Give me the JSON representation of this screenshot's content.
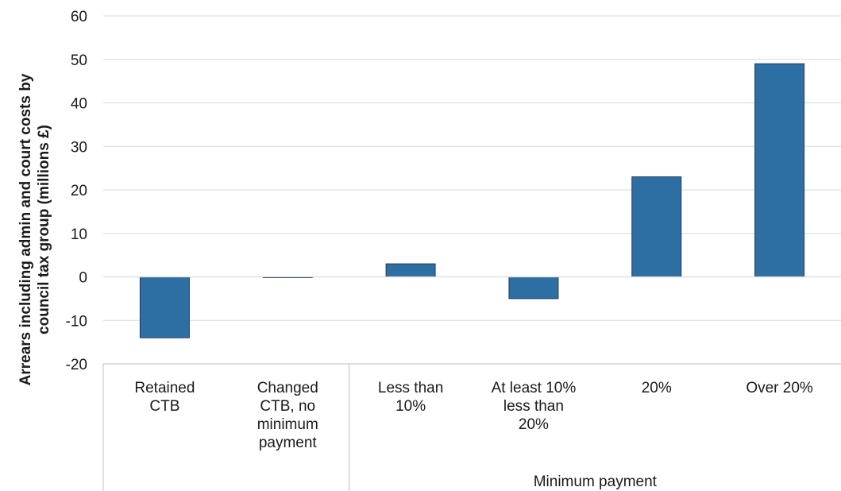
{
  "chart_data": {
    "type": "bar",
    "categories": [
      [
        "Retained",
        "CTB"
      ],
      [
        "Changed",
        "CTB, no",
        "minimum",
        "payment"
      ],
      [
        "Less than",
        "10%"
      ],
      [
        "At least 10%",
        "less than",
        "20%"
      ],
      [
        "20%"
      ],
      [
        "Over 20%"
      ]
    ],
    "values": [
      -14,
      0,
      3,
      -5,
      23,
      49
    ],
    "ylabel": [
      "Arrears including admin  and court costs by",
      "council tax group (millions £)"
    ],
    "xlabel": "",
    "group_label": "Minimum payment",
    "group_start_index": 2,
    "ylim": [
      -20,
      60
    ],
    "yticks": [
      -20,
      -10,
      0,
      10,
      20,
      30,
      40,
      50,
      60
    ],
    "grid": true,
    "colors": {
      "bar": "#2e6fa3",
      "bar_edge": "#1d3f5e",
      "grid": "#d9d9d9",
      "axis": "#bfbfbf"
    }
  }
}
